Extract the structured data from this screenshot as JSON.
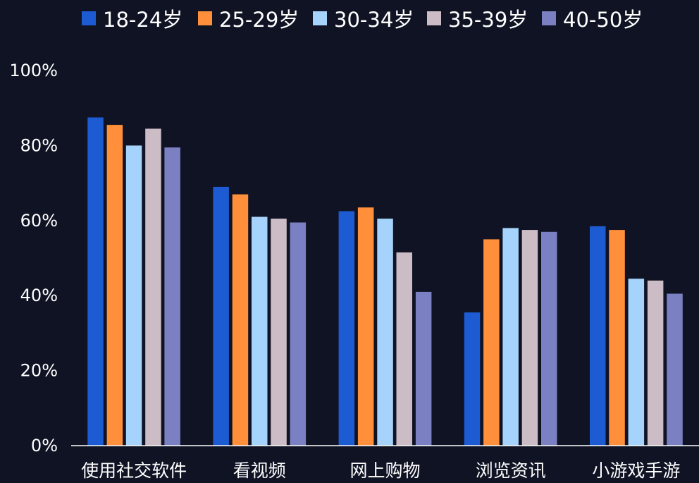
{
  "chart_data": {
    "type": "bar",
    "title": "",
    "xlabel": "",
    "ylabel": "",
    "categories": [
      "使用社交软件",
      "看视频",
      "网上购物",
      "浏览资讯",
      "小游戏手游"
    ],
    "series": [
      {
        "name": "18-24岁",
        "color": "#1c5bd2",
        "values": [
          87.5,
          69,
          62.5,
          35.5,
          58.5
        ]
      },
      {
        "name": "25-29岁",
        "color": "#ff8f3a",
        "values": [
          85.5,
          67,
          63.5,
          55,
          57.5
        ]
      },
      {
        "name": "30-34岁",
        "color": "#a6d3fb",
        "values": [
          80,
          61,
          60.5,
          58,
          44.5
        ]
      },
      {
        "name": "35-39岁",
        "color": "#ccbcc6",
        "values": [
          84.5,
          60.5,
          51.5,
          57.5,
          44
        ]
      },
      {
        "name": "40-50岁",
        "color": "#7b80c2",
        "values": [
          79.5,
          59.5,
          41,
          57,
          40.5
        ]
      }
    ],
    "ylim": [
      0,
      100
    ],
    "yticks": [
      "0%",
      "20%",
      "40%",
      "60%",
      "80%",
      "100%"
    ],
    "grid": false,
    "legend_position": "top",
    "background": "#0f1324",
    "text_color": "#ffffff"
  }
}
